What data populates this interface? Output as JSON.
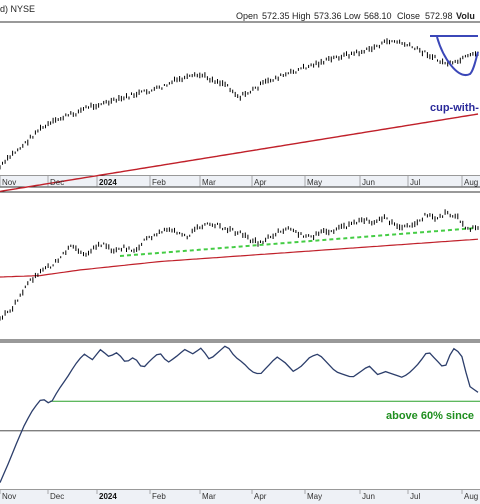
{
  "header": {
    "series_label": "d) NYSE",
    "open_label": "Open",
    "open_value": "572.35",
    "high_label": "High",
    "high_value": "573.36",
    "low_label": "Low",
    "low_value": "568.10",
    "close_label": "Close",
    "close_value": "572.98",
    "volume_label": "Volu"
  },
  "annotations": {
    "cup": "cup-with-",
    "above": "above 60% since"
  },
  "colors": {
    "price": "#000000",
    "ma": "#c0202a",
    "pattern": "#3b47b8",
    "trend": "#44cc44",
    "osc": "#2c3e6b",
    "level": "#2aa02a",
    "annotation_cup": "#2a2a9a",
    "annotation_above": "#1f8f1f",
    "band": "#eef1f6",
    "axis": "#333333"
  },
  "chart_data": [
    {
      "type": "line",
      "panel": "price",
      "title": "",
      "x_tick_labels": [
        "Nov",
        "Dec",
        "2024",
        "Feb",
        "Mar",
        "Apr",
        "May",
        "Jun",
        "Jul",
        "Aug"
      ],
      "x_tick_label_2024_bold": true,
      "series": [
        {
          "kind": "ohlc-bars",
          "values": [
            0.02,
            0.12,
            0.2,
            0.3,
            0.35,
            0.4,
            0.43,
            0.48,
            0.5,
            0.52,
            0.55,
            0.58,
            0.6,
            0.63,
            0.68,
            0.7,
            0.72,
            0.68,
            0.65,
            0.55,
            0.6,
            0.66,
            0.7,
            0.73,
            0.77,
            0.8,
            0.83,
            0.86,
            0.88,
            0.9,
            0.94,
            0.98,
            0.96,
            0.92,
            0.88,
            0.82,
            0.8,
            0.85,
            0.88
          ]
        },
        {
          "kind": "moving-average",
          "values": [
            0.05,
            0.08,
            0.11,
            0.14,
            0.17,
            0.2,
            0.23,
            0.26,
            0.29,
            0.32,
            0.35,
            0.38,
            0.41,
            0.44,
            0.47,
            0.5
          ]
        }
      ],
      "pattern": "cup-with-handle"
    },
    {
      "type": "line",
      "panel": "relative",
      "title": "",
      "series": [
        {
          "kind": "ohlc-bars",
          "values": [
            0.1,
            0.15,
            0.28,
            0.4,
            0.48,
            0.52,
            0.6,
            0.68,
            0.6,
            0.65,
            0.7,
            0.62,
            0.66,
            0.64,
            0.72,
            0.76,
            0.8,
            0.78,
            0.74,
            0.82,
            0.86,
            0.84,
            0.8,
            0.78,
            0.72,
            0.7,
            0.74,
            0.8,
            0.82,
            0.76,
            0.74,
            0.78,
            0.8,
            0.82,
            0.85,
            0.88,
            0.86,
            0.9,
            0.84,
            0.82,
            0.86,
            0.92,
            0.88,
            0.94,
            0.9,
            0.8,
            0.82
          ]
        },
        {
          "kind": "moving-average",
          "values": [
            0.45,
            0.46,
            0.5,
            0.53,
            0.56,
            0.58,
            0.6,
            0.62,
            0.64,
            0.66,
            0.68,
            0.7,
            0.72
          ]
        },
        {
          "kind": "trendline-dashed",
          "values": [
            0.6,
            0.8
          ]
        }
      ]
    },
    {
      "type": "line",
      "panel": "indicator",
      "title": "",
      "x_tick_labels": [
        "Nov",
        "Dec",
        "2024",
        "Feb",
        "Mar",
        "Apr",
        "May",
        "Jun",
        "Jul",
        "Aug"
      ],
      "series": [
        {
          "values": [
            0.05,
            0.18,
            0.32,
            0.45,
            0.55,
            0.62,
            0.58,
            0.68,
            0.76,
            0.85,
            0.92,
            0.88,
            0.95,
            0.9,
            0.93,
            0.86,
            0.9,
            0.82,
            0.88,
            0.93,
            0.86,
            0.9,
            0.95,
            0.92,
            0.96,
            0.88,
            0.93,
            0.98,
            0.9,
            0.86,
            0.8,
            0.78,
            0.84,
            0.9,
            0.86,
            0.8,
            0.84,
            0.9,
            0.92,
            0.86,
            0.8,
            0.78,
            0.76,
            0.8,
            0.84,
            0.78,
            0.8,
            0.78,
            0.76,
            0.8,
            0.86,
            0.94,
            0.88,
            0.82,
            0.96,
            0.92,
            0.7,
            0.66
          ]
        }
      ],
      "reference_levels": [
        0.6,
        0.4
      ]
    }
  ]
}
